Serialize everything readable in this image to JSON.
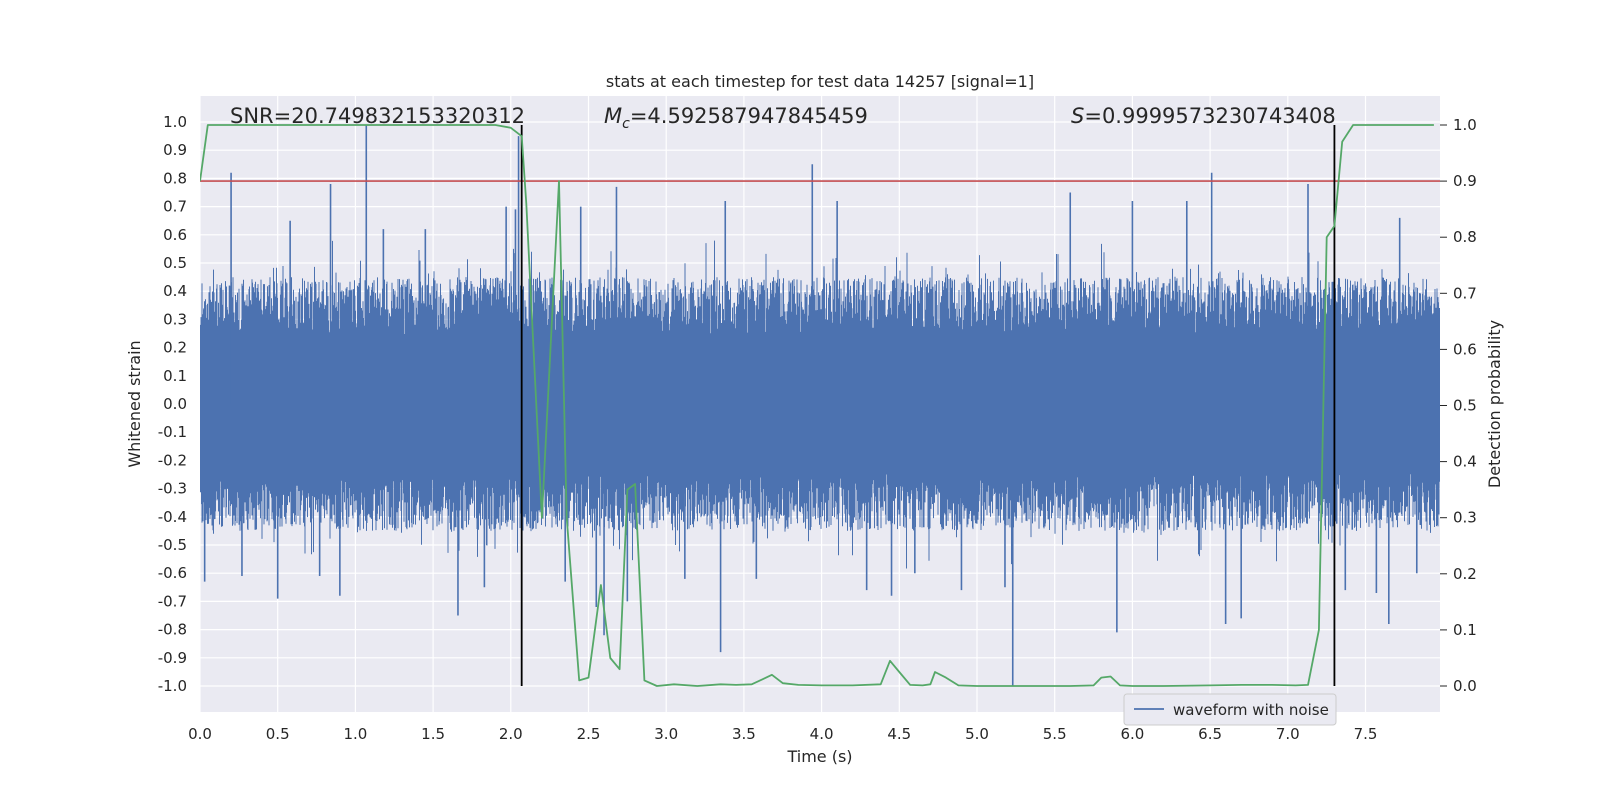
{
  "chart_data": {
    "type": "line",
    "title": "stats at each timestep for test data 14257 [signal=1]",
    "xlabel": "Time (s)",
    "ylabel_left": "Whitened strain",
    "ylabel_right": "Detection probability",
    "xlim": [
      0.0,
      8.0
    ],
    "ylim_left": [
      -1.1,
      1.1
    ],
    "ylim_right": [
      -0.05,
      1.05
    ],
    "x_ticks": [
      "0.0",
      "0.5",
      "1.0",
      "1.5",
      "2.0",
      "2.5",
      "3.0",
      "3.5",
      "4.0",
      "4.5",
      "5.0",
      "5.5",
      "6.0",
      "6.5",
      "7.0",
      "7.5"
    ],
    "y_ticks_left": [
      "1.0",
      "0.9",
      "0.8",
      "0.7",
      "0.6",
      "0.5",
      "0.4",
      "0.3",
      "0.2",
      "0.1",
      "0.0",
      "-0.1",
      "-0.2",
      "-0.3",
      "-0.4",
      "-0.5",
      "-0.6",
      "-0.7",
      "-0.8",
      "-0.9",
      "-1.0"
    ],
    "y_ticks_right": [
      "1.0",
      "0.9",
      "0.8",
      "0.7",
      "0.6",
      "0.5",
      "0.4",
      "0.3",
      "0.2",
      "0.1",
      "0.0"
    ],
    "annotations": {
      "snr": "SNR=20.749832153320312",
      "mc_symbol": "M",
      "mc_sub": "c",
      "mc_value": "=4.592587947845459",
      "s_symbol": "S",
      "s_value": "=0.9999573230743408"
    },
    "legend": {
      "label": "waveform with noise",
      "loc": "lower right"
    },
    "threshold": {
      "value": 0.9,
      "axis": "right",
      "color": "#c44e52"
    },
    "vlines": [
      2.07,
      7.3
    ],
    "waveform": {
      "name": "waveform with noise",
      "color": "#4c72b0",
      "x_range": [
        0.0,
        7.98
      ],
      "envelope": 0.45,
      "spikes": [
        [
          0.03,
          -0.63
        ],
        [
          0.19,
          0.42
        ],
        [
          0.2,
          0.82
        ],
        [
          0.27,
          -0.61
        ],
        [
          0.5,
          -0.69
        ],
        [
          0.58,
          0.65
        ],
        [
          0.77,
          -0.61
        ],
        [
          0.84,
          0.78
        ],
        [
          0.9,
          -0.68
        ],
        [
          1.07,
          0.99
        ],
        [
          1.18,
          0.62
        ],
        [
          1.45,
          0.62
        ],
        [
          1.66,
          -0.75
        ],
        [
          1.83,
          -0.65
        ],
        [
          1.97,
          0.7
        ],
        [
          2.03,
          0.69
        ],
        [
          2.05,
          0.95
        ],
        [
          2.35,
          -0.63
        ],
        [
          2.45,
          0.7
        ],
        [
          2.55,
          -0.72
        ],
        [
          2.6,
          -0.82
        ],
        [
          2.68,
          0.77
        ],
        [
          2.75,
          -0.7
        ],
        [
          3.12,
          -0.62
        ],
        [
          3.35,
          -0.88
        ],
        [
          3.38,
          0.72
        ],
        [
          3.58,
          -0.62
        ],
        [
          3.94,
          0.85
        ],
        [
          4.1,
          0.72
        ],
        [
          4.29,
          -0.66
        ],
        [
          4.45,
          -0.68
        ],
        [
          4.6,
          -0.6
        ],
        [
          4.9,
          -0.66
        ],
        [
          5.18,
          -0.65
        ],
        [
          5.23,
          -1.0
        ],
        [
          5.6,
          0.75
        ],
        [
          5.9,
          -0.81
        ],
        [
          6.0,
          0.72
        ],
        [
          6.35,
          0.72
        ],
        [
          6.51,
          0.82
        ],
        [
          6.6,
          -0.78
        ],
        [
          6.7,
          -0.76
        ],
        [
          7.13,
          0.78
        ],
        [
          7.37,
          -0.66
        ],
        [
          7.57,
          -0.67
        ],
        [
          7.65,
          -0.78
        ],
        [
          7.72,
          0.66
        ],
        [
          7.83,
          -0.6
        ]
      ]
    },
    "series": [
      {
        "name": "Detection probability",
        "axis": "right",
        "color": "#55a868",
        "x": [
          0.0,
          0.05,
          0.2,
          0.5,
          1.0,
          1.5,
          1.9,
          2.0,
          2.07,
          2.1,
          2.2,
          2.31,
          2.36,
          2.44,
          2.5,
          2.58,
          2.64,
          2.7,
          2.75,
          2.8,
          2.86,
          2.94,
          3.05,
          3.2,
          3.35,
          3.45,
          3.55,
          3.62,
          3.68,
          3.75,
          3.85,
          4.0,
          4.2,
          4.38,
          4.44,
          4.5,
          4.57,
          4.65,
          4.7,
          4.73,
          4.8,
          4.88,
          5.0,
          5.2,
          5.4,
          5.6,
          5.75,
          5.8,
          5.86,
          5.92,
          6.0,
          6.2,
          6.5,
          6.7,
          6.9,
          7.05,
          7.13,
          7.2,
          7.25,
          7.3,
          7.35,
          7.42,
          7.5,
          7.7,
          7.94
        ],
        "y": [
          0.9,
          1.0,
          1.0,
          1.0,
          1.0,
          1.0,
          1.0,
          0.995,
          0.98,
          0.86,
          0.3,
          0.9,
          0.3,
          0.01,
          0.015,
          0.18,
          0.05,
          0.03,
          0.35,
          0.36,
          0.01,
          0.0,
          0.003,
          0.0,
          0.003,
          0.002,
          0.003,
          0.012,
          0.02,
          0.005,
          0.002,
          0.001,
          0.001,
          0.003,
          0.045,
          0.025,
          0.002,
          0.001,
          0.003,
          0.025,
          0.015,
          0.001,
          0.0,
          0.0,
          0.0,
          0.0,
          0.001,
          0.015,
          0.017,
          0.001,
          0.0,
          0.0,
          0.001,
          0.002,
          0.002,
          0.001,
          0.002,
          0.1,
          0.8,
          0.82,
          0.97,
          1.0,
          1.0,
          1.0,
          1.0
        ]
      }
    ]
  }
}
